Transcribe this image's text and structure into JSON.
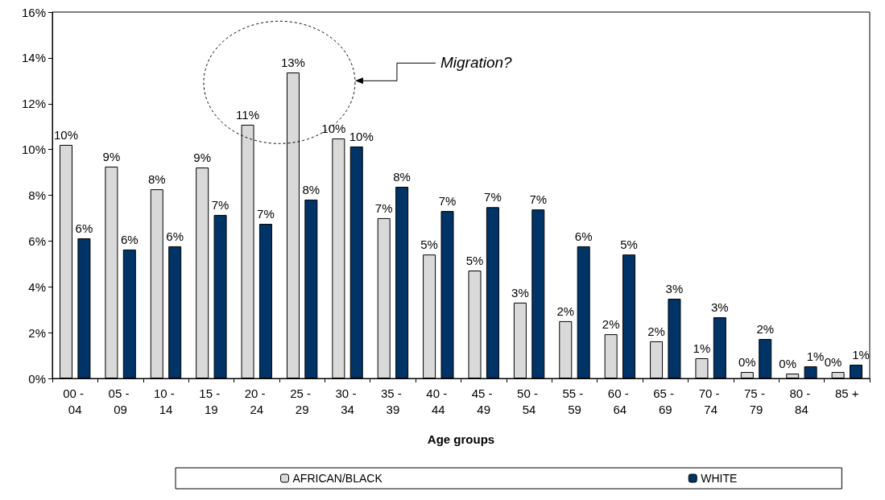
{
  "chart_data": {
    "type": "bar",
    "xlabel": "Age groups",
    "categories": [
      "00 - 04",
      "05 - 09",
      "10 - 14",
      "15 - 19",
      "20 - 24",
      "25 - 29",
      "30 - 34",
      "35 - 39",
      "40 - 44",
      "45 - 49",
      "50 - 54",
      "55 - 59",
      "60 - 64",
      "65 - 69",
      "70 - 74",
      "75 - 79",
      "80 - 84",
      "85 +"
    ],
    "series": [
      {
        "name": "AFRICAN/BLACK",
        "color": "#d9d9d9",
        "values": [
          10.2,
          9.25,
          8.26,
          9.21,
          11.08,
          13.36,
          10.48,
          7.0,
          5.41,
          4.71,
          3.31,
          2.5,
          1.93,
          1.62,
          0.88,
          0.28,
          0.21,
          0.28
        ],
        "value_labels": [
          "10%",
          "9%",
          "8%",
          "9%",
          "11%",
          "13%",
          "10%",
          "7%",
          "5%",
          "5%",
          "3%",
          "2%",
          "2%",
          "2%",
          "1%",
          "0%",
          "0%",
          "0%"
        ]
      },
      {
        "name": "WHITE",
        "color": "#003366",
        "values": [
          6.12,
          5.63,
          5.77,
          7.14,
          6.75,
          7.81,
          10.13,
          8.37,
          7.31,
          7.48,
          7.38,
          5.77,
          5.41,
          3.48,
          2.67,
          1.72,
          0.53,
          0.6
        ],
        "value_labels": [
          "6%",
          "6%",
          "6%",
          "7%",
          "7%",
          "8%",
          "10%",
          "8%",
          "7%",
          "7%",
          "7%",
          "6%",
          "5%",
          "3%",
          "3%",
          "2%",
          "1%",
          "1%"
        ]
      }
    ],
    "ylim": [
      0,
      16
    ],
    "yticks": [
      {
        "value": 0,
        "label": "0%"
      },
      {
        "value": 2,
        "label": "2%"
      },
      {
        "value": 4,
        "label": "4%"
      },
      {
        "value": 6,
        "label": "6%"
      },
      {
        "value": 8,
        "label": "8%"
      },
      {
        "value": 10,
        "label": "10%"
      },
      {
        "value": 12,
        "label": "12%"
      },
      {
        "value": 14,
        "label": "14%"
      },
      {
        "value": 16,
        "label": "16%"
      }
    ],
    "grid": false,
    "legend": "bottom",
    "annotations": [
      "Migration?"
    ]
  }
}
